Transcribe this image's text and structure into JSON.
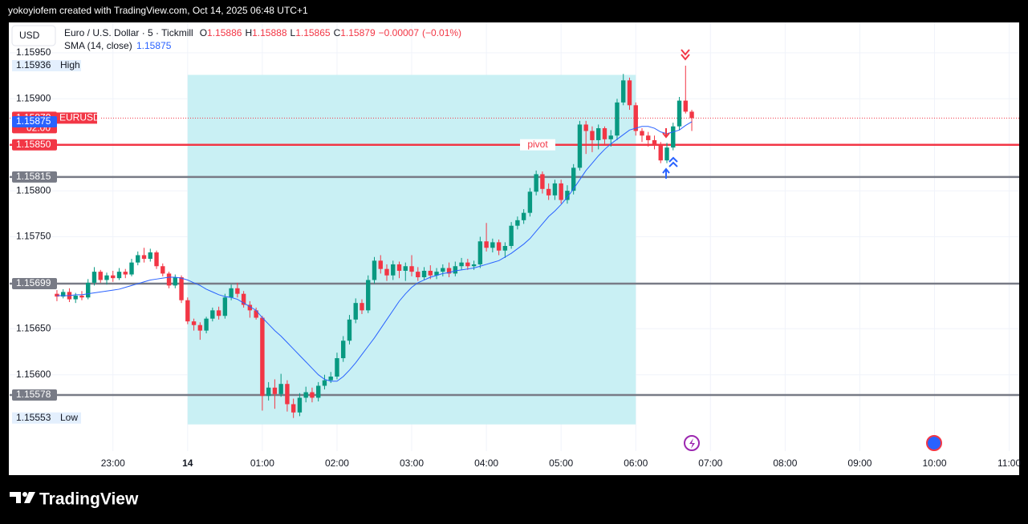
{
  "chart_data": {
    "type": "candlestick",
    "header": "yokoyiofem created with TradingView.com, Oct 14, 2025 06:48 UTC+1",
    "currency": "USD",
    "title": "Euro / U.S. Dollar · 5 · Tickmill",
    "ohlc_legend": [
      {
        "key": "O",
        "value": 1.15886
      },
      {
        "key": "H",
        "value": 1.15888
      },
      {
        "key": "L",
        "value": 1.15865
      },
      {
        "key": "C",
        "value": 1.15879
      }
    ],
    "change": {
      "value": -7e-05,
      "label": "−0.00007"
    },
    "change_percent": {
      "value": -0.01,
      "label": "(−0.01%)"
    },
    "up_color": "#089981",
    "down_color": "#f23645",
    "x": [
      "22:15",
      "22:20",
      "22:25",
      "22:30",
      "22:35",
      "22:40",
      "22:45",
      "22:50",
      "22:55",
      "23:00",
      "23:05",
      "23:10",
      "23:15",
      "23:20",
      "23:25",
      "23:30",
      "23:35",
      "23:40",
      "23:45",
      "23:50",
      "23:55",
      "00:00",
      "00:05",
      "00:10",
      "00:15",
      "00:20",
      "00:25",
      "00:30",
      "00:35",
      "00:40",
      "00:45",
      "00:50",
      "00:55",
      "01:00",
      "01:05",
      "01:10",
      "01:15",
      "01:20",
      "01:25",
      "01:30",
      "01:35",
      "01:40",
      "01:45",
      "01:50",
      "01:55",
      "02:00",
      "02:05",
      "02:10",
      "02:15",
      "02:20",
      "02:25",
      "02:30",
      "02:35",
      "02:40",
      "02:45",
      "02:50",
      "02:55",
      "03:00",
      "03:05",
      "03:10",
      "03:15",
      "03:20",
      "03:25",
      "03:30",
      "03:35",
      "03:40",
      "03:45",
      "03:50",
      "03:55",
      "04:00",
      "04:05",
      "04:10",
      "04:15",
      "04:20",
      "04:25",
      "04:30",
      "04:35",
      "04:40",
      "04:45",
      "04:50",
      "04:55",
      "05:00",
      "05:05",
      "05:10",
      "05:15",
      "05:20",
      "05:25",
      "05:30",
      "05:35",
      "05:40",
      "05:45",
      "05:50",
      "05:55",
      "06:00",
      "06:05",
      "06:10",
      "06:15",
      "06:20",
      "06:25",
      "06:30",
      "06:35",
      "06:40",
      "06:45"
    ],
    "open": [
      1.15688,
      1.15685,
      1.1569,
      1.15682,
      1.15686,
      1.15684,
      1.157,
      1.15712,
      1.15703,
      1.15708,
      1.15705,
      1.15712,
      1.15709,
      1.15722,
      1.1573,
      1.15726,
      1.15733,
      1.15718,
      1.1571,
      1.15697,
      1.15706,
      1.15681,
      1.15658,
      1.15654,
      1.15648,
      1.15661,
      1.1567,
      1.15664,
      1.15684,
      1.15694,
      1.15688,
      1.15676,
      1.1567,
      1.15662,
      1.15577,
      1.15586,
      1.15579,
      1.1559,
      1.15568,
      1.15559,
      1.15575,
      1.15581,
      1.15575,
      1.15588,
      1.15594,
      1.15598,
      1.15618,
      1.15637,
      1.1566,
      1.15678,
      1.1567,
      1.15703,
      1.15724,
      1.15715,
      1.15708,
      1.1572,
      1.15713,
      1.15718,
      1.15712,
      1.15706,
      1.15713,
      1.15708,
      1.15712,
      1.15716,
      1.1571,
      1.15718,
      1.15722,
      1.15718,
      1.1572,
      1.15745,
      1.15738,
      1.15744,
      1.15735,
      1.1574,
      1.15762,
      1.15768,
      1.15776,
      1.15799,
      1.15818,
      1.15802,
      1.15795,
      1.15808,
      1.1579,
      1.158,
      1.15825,
      1.15872,
      1.15865,
      1.15855,
      1.15868,
      1.15856,
      1.1586,
      1.15896,
      1.1592,
      1.15893,
      1.15865,
      1.1586,
      1.15855,
      1.1585,
      1.15833,
      1.15847,
      1.1587,
      1.15898,
      1.15886
    ],
    "high": [
      1.15692,
      1.15693,
      1.15694,
      1.15689,
      1.15691,
      1.15704,
      1.15717,
      1.15714,
      1.15711,
      1.15713,
      1.15716,
      1.15715,
      1.15726,
      1.15734,
      1.15738,
      1.15737,
      1.15735,
      1.15721,
      1.15712,
      1.15709,
      1.15708,
      1.15684,
      1.15661,
      1.15657,
      1.15663,
      1.15673,
      1.15674,
      1.15688,
      1.15698,
      1.157,
      1.15691,
      1.1568,
      1.15673,
      1.15664,
      1.15592,
      1.15595,
      1.15601,
      1.15594,
      1.15574,
      1.1558,
      1.15587,
      1.15586,
      1.15592,
      1.156,
      1.15603,
      1.15624,
      1.15642,
      1.15665,
      1.15683,
      1.15682,
      1.15708,
      1.15728,
      1.1573,
      1.1572,
      1.15724,
      1.15723,
      1.15722,
      1.1573,
      1.15717,
      1.15717,
      1.15719,
      1.15716,
      1.1572,
      1.15722,
      1.15723,
      1.15727,
      1.15726,
      1.15724,
      1.1575,
      1.15765,
      1.15748,
      1.15747,
      1.15744,
      1.15766,
      1.15772,
      1.1578,
      1.15803,
      1.15822,
      1.15821,
      1.15808,
      1.15812,
      1.15812,
      1.15806,
      1.15829,
      1.15876,
      1.15876,
      1.1587,
      1.15872,
      1.1587,
      1.15866,
      1.159,
      1.15927,
      1.15923,
      1.15896,
      1.15868,
      1.15864,
      1.1586,
      1.15853,
      1.15852,
      1.15874,
      1.15902,
      1.15936,
      1.15888
    ],
    "low": [
      1.1568,
      1.15683,
      1.15679,
      1.15678,
      1.15681,
      1.15682,
      1.15697,
      1.157,
      1.15698,
      1.15701,
      1.15703,
      1.15705,
      1.15707,
      1.15719,
      1.15722,
      1.15723,
      1.15715,
      1.15707,
      1.15694,
      1.15694,
      1.15678,
      1.15655,
      1.15648,
      1.15638,
      1.15645,
      1.15658,
      1.1566,
      1.15661,
      1.15681,
      1.15684,
      1.15673,
      1.15662,
      1.1566,
      1.15561,
      1.15572,
      1.15563,
      1.15576,
      1.1556,
      1.15553,
      1.15555,
      1.1557,
      1.1557,
      1.15571,
      1.15584,
      1.15591,
      1.15595,
      1.15614,
      1.15633,
      1.15656,
      1.15666,
      1.15667,
      1.15699,
      1.1571,
      1.15702,
      1.15703,
      1.15705,
      1.15702,
      1.15707,
      1.15702,
      1.15703,
      1.15704,
      1.15704,
      1.15707,
      1.15706,
      1.15707,
      1.15714,
      1.15714,
      1.15714,
      1.15716,
      1.15734,
      1.15733,
      1.1573,
      1.15727,
      1.15737,
      1.15758,
      1.15764,
      1.15772,
      1.15795,
      1.15797,
      1.1579,
      1.1579,
      1.15786,
      1.15786,
      1.15796,
      1.15822,
      1.1584,
      1.15842,
      1.15845,
      1.1585,
      1.15848,
      1.15855,
      1.15893,
      1.15888,
      1.1586,
      1.15853,
      1.15848,
      1.15845,
      1.1583,
      1.1583,
      1.15844,
      1.15866,
      1.15884,
      1.15865
    ],
    "close": [
      1.15685,
      1.1569,
      1.15682,
      1.15686,
      1.15684,
      1.157,
      1.15712,
      1.15703,
      1.15708,
      1.15705,
      1.15712,
      1.15709,
      1.15722,
      1.1573,
      1.15726,
      1.15733,
      1.15718,
      1.1571,
      1.15697,
      1.15706,
      1.15681,
      1.15658,
      1.15654,
      1.15648,
      1.15661,
      1.1567,
      1.15664,
      1.15684,
      1.15694,
      1.15688,
      1.15676,
      1.1567,
      1.15662,
      1.15577,
      1.15586,
      1.15579,
      1.1559,
      1.15568,
      1.15559,
      1.15575,
      1.15581,
      1.15575,
      1.15588,
      1.15594,
      1.15598,
      1.15618,
      1.15637,
      1.1566,
      1.15678,
      1.1567,
      1.15703,
      1.15724,
      1.15715,
      1.15708,
      1.1572,
      1.15713,
      1.15718,
      1.15712,
      1.15706,
      1.15713,
      1.15708,
      1.15712,
      1.15716,
      1.1571,
      1.15718,
      1.15722,
      1.15718,
      1.1572,
      1.15745,
      1.15738,
      1.15744,
      1.15735,
      1.1574,
      1.15762,
      1.15768,
      1.15776,
      1.15799,
      1.15818,
      1.15802,
      1.15795,
      1.15808,
      1.1579,
      1.158,
      1.15825,
      1.15872,
      1.15865,
      1.15855,
      1.15868,
      1.15856,
      1.1586,
      1.15896,
      1.1592,
      1.15893,
      1.15865,
      1.1586,
      1.15855,
      1.1585,
      1.15833,
      1.15847,
      1.1587,
      1.15898,
      1.15886,
      1.15879
    ],
    "indicator": {
      "name": "SMA (14, close)",
      "value": 1.15875,
      "color": "#2962ff",
      "values": [
        1.15686,
        1.15686,
        1.15686,
        1.15687,
        1.15687,
        1.15688,
        1.15689,
        1.1569,
        1.15691,
        1.15692,
        1.15693,
        1.15695,
        1.15697,
        1.15699,
        1.15701,
        1.15703,
        1.15704,
        1.15705,
        1.15706,
        1.15706,
        1.15705,
        1.15703,
        1.157,
        1.15697,
        1.15693,
        1.1569,
        1.15687,
        1.15685,
        1.15684,
        1.15682,
        1.15678,
        1.15674,
        1.1567,
        1.15662,
        1.15655,
        1.15648,
        1.15642,
        1.15635,
        1.15628,
        1.15621,
        1.15614,
        1.15607,
        1.156,
        1.15595,
        1.15593,
        1.15593,
        1.15598,
        1.15605,
        1.15613,
        1.15622,
        1.15631,
        1.1564,
        1.1565,
        1.1566,
        1.1567,
        1.1568,
        1.15688,
        1.15695,
        1.157,
        1.15703,
        1.15706,
        1.15708,
        1.1571,
        1.15711,
        1.15713,
        1.15714,
        1.15715,
        1.15716,
        1.15718,
        1.1572,
        1.15722,
        1.15724,
        1.15728,
        1.15732,
        1.15737,
        1.15742,
        1.15748,
        1.15756,
        1.15764,
        1.15772,
        1.15778,
        1.15785,
        1.15793,
        1.15802,
        1.15812,
        1.15822,
        1.1583,
        1.15838,
        1.15845,
        1.15851,
        1.15856,
        1.15861,
        1.15866,
        1.15868,
        1.1587,
        1.1587,
        1.15868,
        1.15864,
        1.15862,
        1.15864,
        1.15866,
        1.15871,
        1.15875
      ]
    },
    "xlim": [
      "21:37",
      "11:08"
    ],
    "xticks": [
      "23:00",
      {
        "value": "00:00",
        "label": "14"
      },
      "01:00",
      "02:00",
      "03:00",
      "04:00",
      "05:00",
      "06:00",
      "07:00",
      "08:00",
      "09:00",
      "10:00",
      "11:00"
    ],
    "ylim": [
      1.15517,
      1.15983
    ],
    "yticks": [
      {
        "value": 1.1595,
        "label": "1.15950"
      },
      {
        "value": 1.159,
        "label": "1.15900"
      },
      {
        "value": 1.158,
        "label": "1.15800"
      },
      {
        "value": 1.1575,
        "label": "1.15750"
      },
      {
        "value": 1.1565,
        "label": "1.15650"
      },
      {
        "value": 1.156,
        "label": "1.15600"
      }
    ],
    "range_box": {
      "x": [
        "00:00",
        "06:00"
      ],
      "y": [
        1.15546,
        1.15926
      ],
      "color": "#c9f0f4"
    },
    "hlines": [
      {
        "value": 1.1585,
        "label": "1.15850",
        "name": "pivot",
        "color": "#f23645"
      },
      {
        "value": 1.15815,
        "color": "#787b86"
      },
      {
        "value": 1.15699,
        "color": "#787b86"
      },
      {
        "value": 1.15578,
        "color": "#787b86"
      }
    ],
    "markers": [
      {
        "name": "High",
        "value": 1.15936
      },
      {
        "name": "Low",
        "value": 1.15553
      }
    ],
    "last_price": {
      "name": "EURUSD",
      "value": 1.15879,
      "countdown": "02:00",
      "color": "#f23645"
    },
    "brand": "TradingView"
  }
}
